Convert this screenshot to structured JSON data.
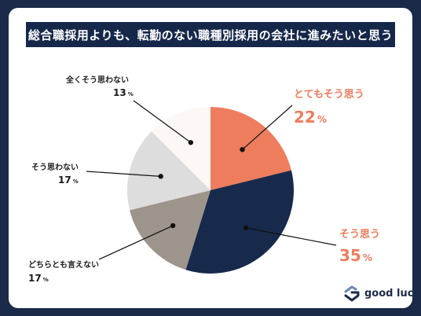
{
  "title": "総合職採用よりも、転勤のない職種別採用の会社に進みたいと思う",
  "logo": "good luck",
  "chart_data": {
    "type": "pie",
    "categories": [
      "とてもそう思う",
      "そう思う",
      "どちらとも言えない",
      "そう思わない",
      "全くそう思わない"
    ],
    "values": [
      22,
      35,
      17,
      17,
      13
    ],
    "unit": "%",
    "colors": [
      "#ee7d5e",
      "#182a4b",
      "#9d948c",
      "#dddddd",
      "#fdf8f6"
    ],
    "label_colors": [
      "#ee7d5e",
      "#ee7d5e",
      "#1b1b1b",
      "#1b1b1b",
      "#1b1b1b"
    ]
  }
}
